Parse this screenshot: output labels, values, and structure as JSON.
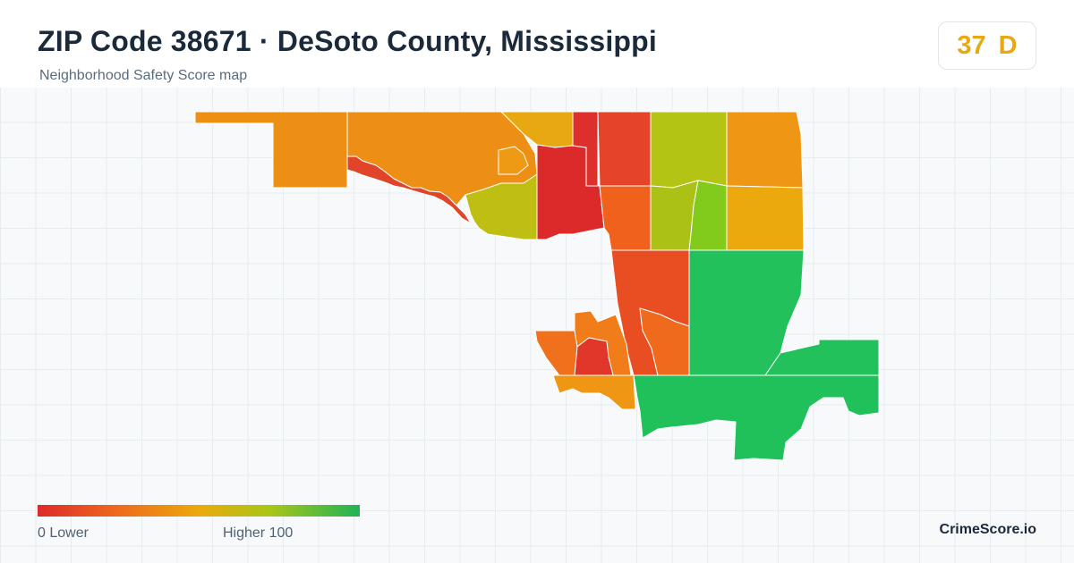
{
  "header": {
    "title": "ZIP Code 38671 · DeSoto County, Mississippi",
    "subtitle": "Neighborhood Safety Score map"
  },
  "score": {
    "value": "37",
    "grade": "D",
    "color": "#e8a812"
  },
  "legend": {
    "low_label": "0  Lower",
    "high_label": "Higher  100",
    "min": 0,
    "max": 100,
    "colors": [
      "#de2a2a",
      "#ef6a1c",
      "#eba90e",
      "#a9c616",
      "#1fb356"
    ]
  },
  "brand": "CrimeScore.io",
  "map": {
    "regions": [
      {
        "id": "west-upper",
        "color": "#ee8f15"
      },
      {
        "id": "north-central",
        "color": "#ee8f15"
      },
      {
        "id": "west-river",
        "color": "#e0452a"
      },
      {
        "id": "north-gold",
        "color": "#e8a812"
      },
      {
        "id": "center-lime",
        "color": "#bfbe12"
      },
      {
        "id": "center-orange-inner",
        "color": "#ee9a15"
      },
      {
        "id": "center-red",
        "color": "#dc2a2a"
      },
      {
        "id": "red-strip",
        "color": "#dd2f2c"
      },
      {
        "id": "east-red",
        "color": "#e54428"
      },
      {
        "id": "green-yellow-north",
        "color": "#b4c414"
      },
      {
        "id": "northeast-orange",
        "color": "#ef9714"
      },
      {
        "id": "mid-orange",
        "color": "#f0621c"
      },
      {
        "id": "lime-center",
        "color": "#acc115"
      },
      {
        "id": "bright-green",
        "color": "#82cb1c"
      },
      {
        "id": "gold-east",
        "color": "#eba90e"
      },
      {
        "id": "red-orange-south",
        "color": "#e84e22"
      },
      {
        "id": "orange-south-inner",
        "color": "#f06a1e"
      },
      {
        "id": "green-east",
        "color": "#22c15c"
      },
      {
        "id": "green-south",
        "color": "#20c05a"
      },
      {
        "id": "green-far-east",
        "color": "#22c15c"
      },
      {
        "id": "sw-orange",
        "color": "#f0701c"
      },
      {
        "id": "sw-orange-inner",
        "color": "#f07d1a"
      },
      {
        "id": "sw-red",
        "color": "#e0372a"
      },
      {
        "id": "sw-orange-south",
        "color": "#ef9615"
      }
    ]
  }
}
